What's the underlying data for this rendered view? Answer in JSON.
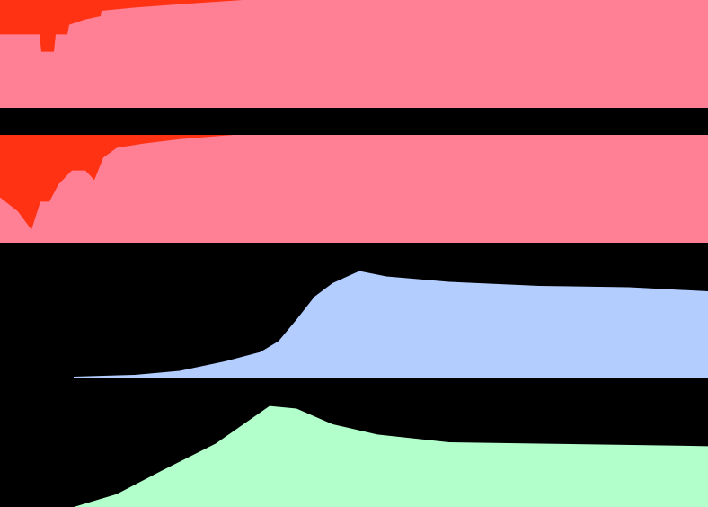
{
  "chart_data": [
    {
      "type": "area",
      "inverted": true,
      "background": "#ff7f94",
      "color": "#ff3314",
      "x": [
        0,
        44,
        46,
        60,
        62,
        75,
        77,
        95,
        112,
        113,
        150,
        200,
        270,
        788
      ],
      "values": [
        32,
        32,
        48,
        48,
        32,
        32,
        23,
        18,
        15,
        10,
        7,
        4,
        0,
        0
      ],
      "xlim": [
        0,
        788
      ],
      "ylim": [
        0,
        100
      ]
    },
    {
      "type": "area",
      "inverted": true,
      "background": "#ff7f94",
      "color": "#ff3314",
      "x": [
        0,
        20,
        35,
        45,
        55,
        65,
        80,
        95,
        105,
        115,
        130,
        160,
        200,
        260,
        788
      ],
      "values": [
        58,
        71,
        88,
        62,
        62,
        46,
        33,
        33,
        42,
        21,
        12,
        8,
        4,
        0,
        0
      ],
      "xlim": [
        0,
        788
      ],
      "ylim": [
        0,
        100
      ]
    },
    {
      "type": "area",
      "inverted": false,
      "background": "#000000",
      "color": "#b3cdff",
      "x": [
        82,
        150,
        200,
        250,
        290,
        310,
        330,
        350,
        370,
        400,
        430,
        500,
        600,
        700,
        788
      ],
      "values": [
        0.7,
        2,
        5,
        12,
        19,
        27,
        43,
        60,
        70,
        79,
        75,
        71,
        68,
        67,
        64
      ],
      "xlim": [
        0,
        788
      ],
      "ylim": [
        0,
        100
      ]
    },
    {
      "type": "area",
      "inverted": false,
      "background": "#000000",
      "color": "#b3ffcc",
      "x": [
        82,
        130,
        180,
        240,
        300,
        330,
        370,
        420,
        500,
        600,
        788
      ],
      "values": [
        0,
        10,
        28,
        49,
        78,
        76,
        64,
        56,
        50,
        49,
        47
      ],
      "xlim": [
        0,
        788
      ],
      "ylim": [
        0,
        100
      ]
    }
  ]
}
